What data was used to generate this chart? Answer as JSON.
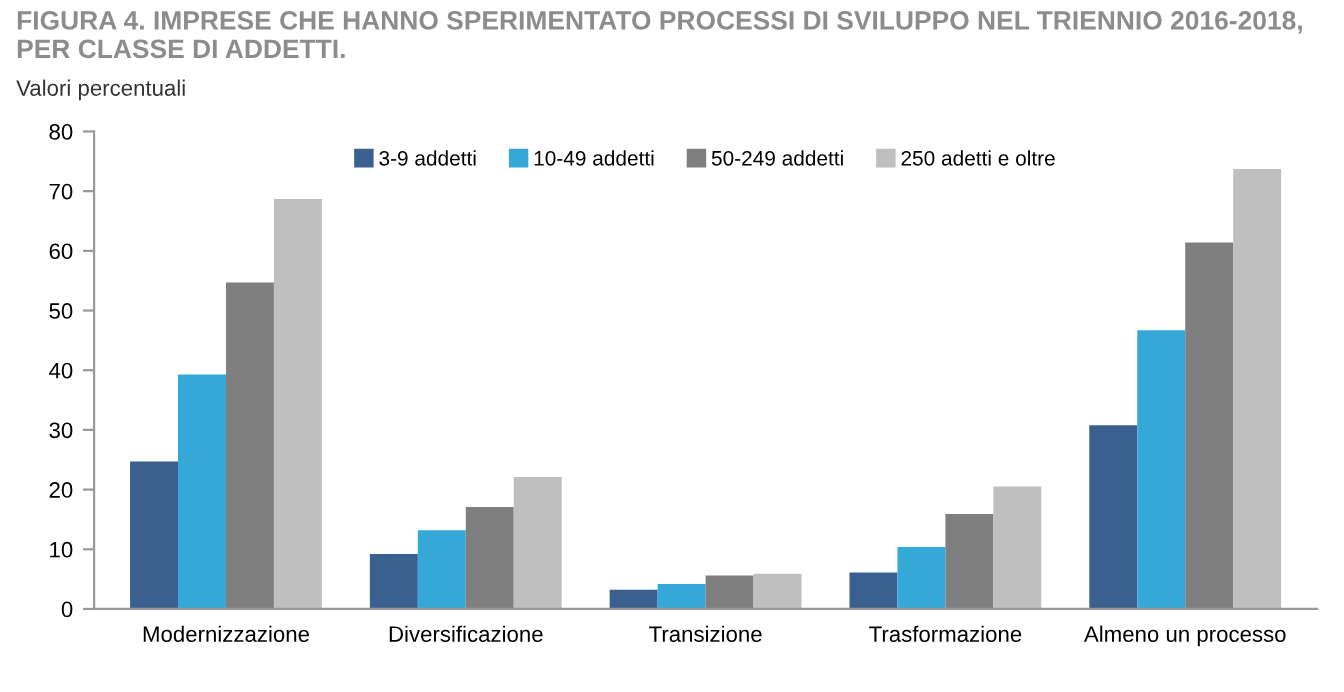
{
  "chart_data": {
    "type": "bar",
    "title": "FIGURA 4. IMPRESE CHE HANNO SPERIMENTATO PROCESSI DI SVILUPPO NEL TRIENNIO 2016-2018, PER CLASSE DI ADDETTI.",
    "subtitle": "Valori percentuali",
    "categories": [
      "Modernizzazione",
      "Diversificazione",
      "Transizione",
      "Trasformazione",
      "Almeno un processo"
    ],
    "series": [
      {
        "name": "3-9 addetti",
        "color": "#3a6090",
        "values": [
          24.7,
          9.2,
          3.2,
          6.1,
          30.8
        ]
      },
      {
        "name": "10-49 addetti",
        "color": "#35a8d8",
        "values": [
          39.3,
          13.2,
          4.2,
          10.4,
          46.7
        ]
      },
      {
        "name": "50-249 addetti",
        "color": "#7f7f7f",
        "values": [
          54.7,
          17.1,
          5.6,
          15.9,
          61.4
        ]
      },
      {
        "name": "250 adetti e oltre",
        "color": "#bfbfbf",
        "values": [
          68.7,
          22.1,
          5.9,
          20.5,
          73.7
        ]
      }
    ],
    "ylim": [
      0,
      80
    ],
    "yticks": [
      0,
      10,
      20,
      30,
      40,
      50,
      60,
      70,
      80
    ],
    "grid": false,
    "legend": "top"
  }
}
